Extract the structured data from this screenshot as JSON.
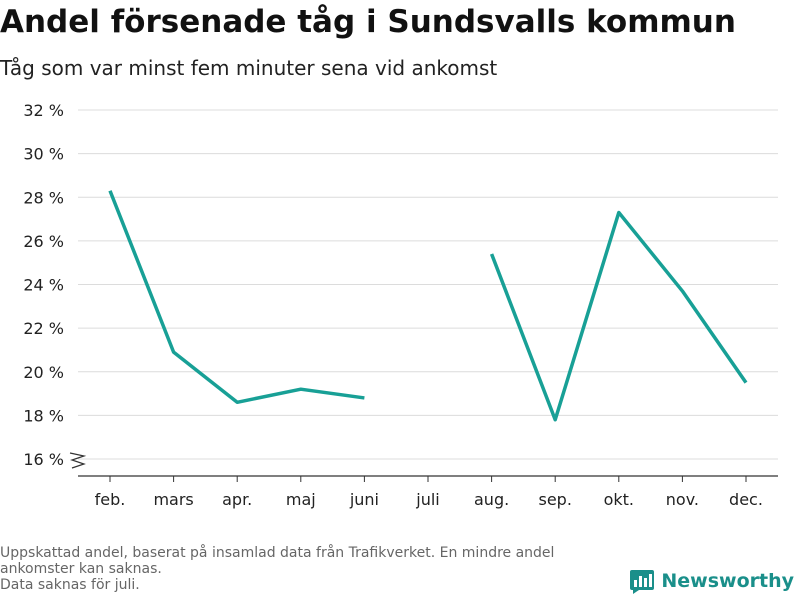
{
  "header": {
    "title": "Andel försenade tåg i Sundsvalls kommun",
    "subtitle": "Tåg som var minst fem minuter sena vid ankomst"
  },
  "footnote": {
    "lines": [
      "Uppskattad andel, baserat på insamlad data från Trafikverket. En mindre andel",
      "ankomster kan saknas.",
      "Data saknas för juli."
    ]
  },
  "brand": {
    "name": "Newsworthy",
    "icon": "bar-chart-logo-icon",
    "color": "#1a8f8a"
  },
  "chart_data": {
    "type": "line",
    "title": "Andel försenade tåg i Sundsvalls kommun",
    "subtitle": "Tåg som var minst fem minuter sena vid ankomst",
    "xlabel": "",
    "ylabel": "",
    "categories": [
      "feb.",
      "mars",
      "apr.",
      "maj",
      "juni",
      "juli",
      "aug.",
      "sep.",
      "okt.",
      "nov.",
      "dec."
    ],
    "series": [
      {
        "values": [
          28.3,
          20.9,
          18.6,
          19.2,
          18.8,
          null,
          25.4,
          17.8,
          27.3,
          23.7,
          19.5
        ]
      }
    ],
    "yticks": [
      16,
      18,
      20,
      22,
      24,
      26,
      28,
      30,
      32
    ],
    "ytick_suffix": " %",
    "ylim": [
      16,
      32
    ],
    "axis_break": true,
    "grid": true,
    "legend": "none",
    "line_color": "#18a096"
  }
}
